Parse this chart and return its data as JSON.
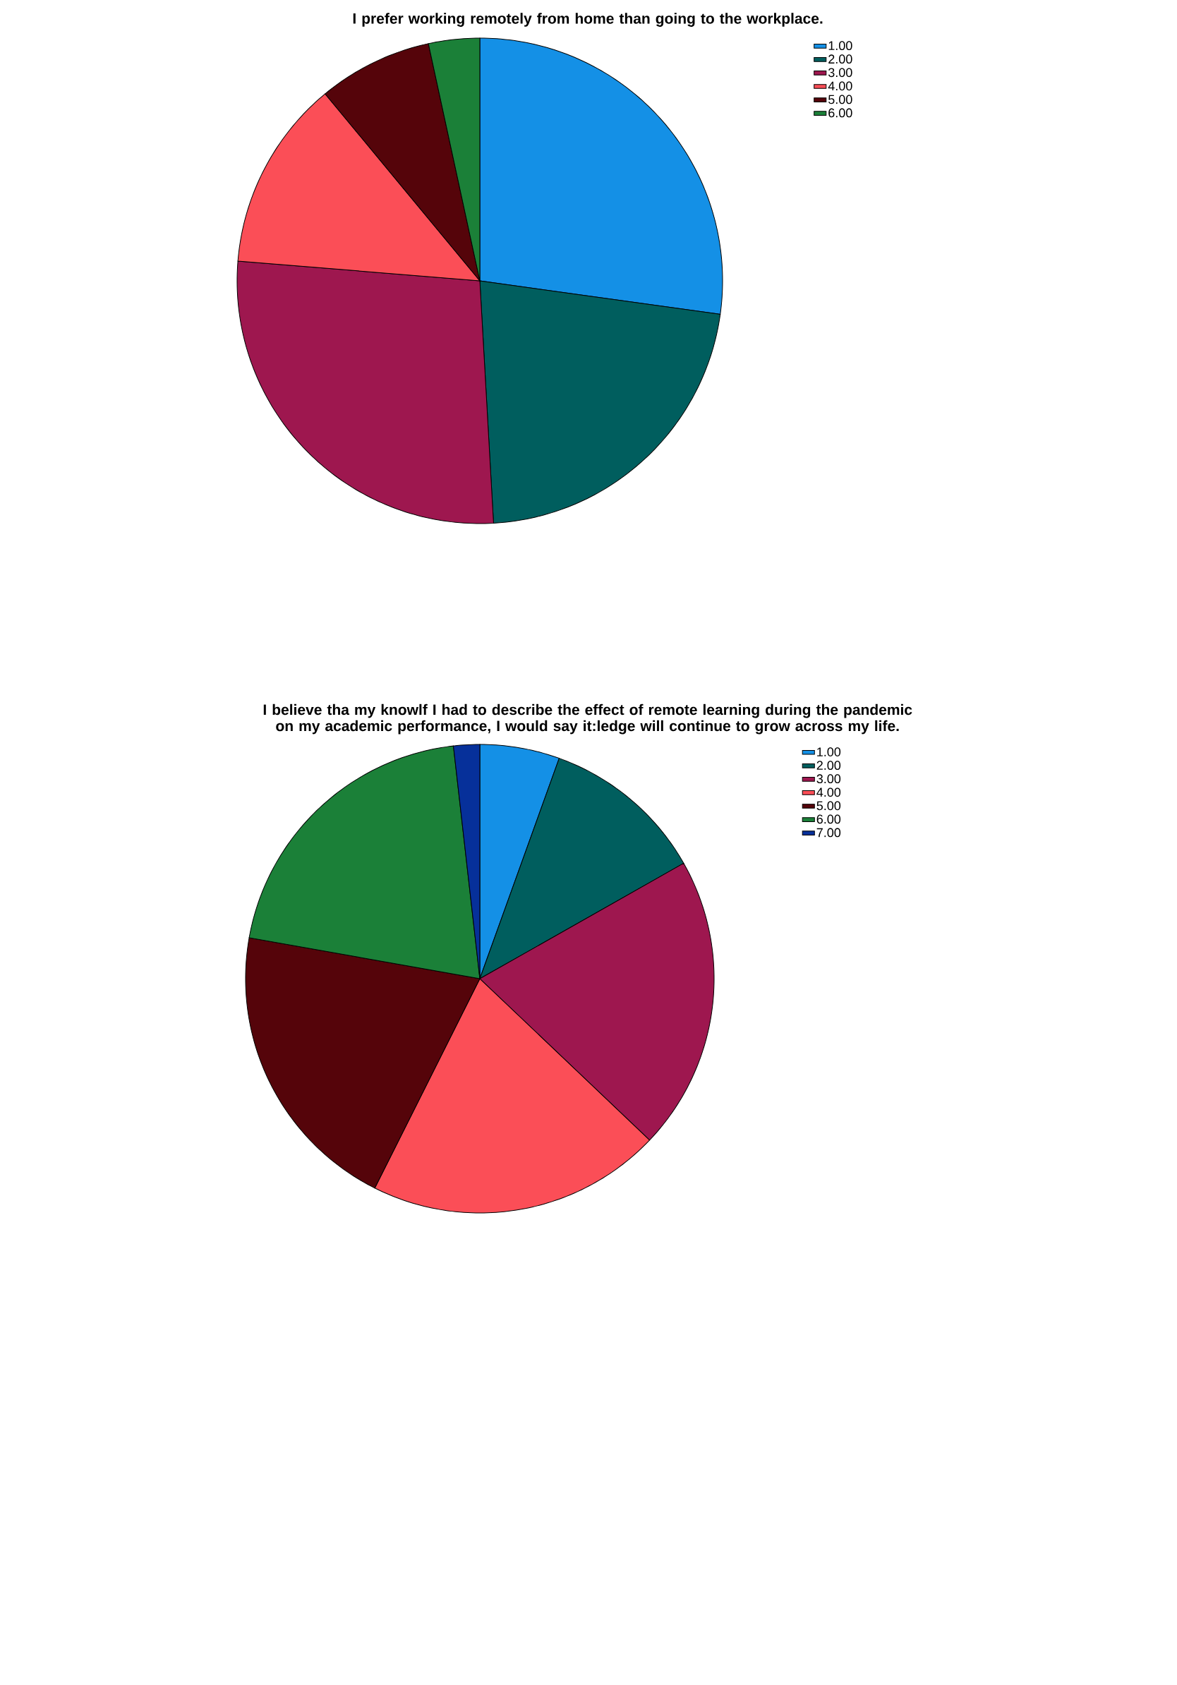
{
  "chart_data": [
    {
      "type": "pie",
      "title": "I prefer working remotely from home than going to the workplace.",
      "categories": [
        "1.00",
        "2.00",
        "3.00",
        "4.00",
        "5.00",
        "6.00"
      ],
      "values": [
        27.2,
        21.9,
        27.2,
        12.7,
        7.6,
        3.4
      ],
      "colors": [
        "#1490e6",
        "#005e5e",
        "#9e174f",
        "#fb4e57",
        "#55040a",
        "#1b8038"
      ],
      "legend": "top right"
    },
    {
      "type": "pie",
      "title": "I believe tha my knowlf I had to describe the effect of remote learning during the pandemic on my academic performance, I would say it:ledge will continue to grow across my life.",
      "categories": [
        "1.00",
        "2.00",
        "3.00",
        "4.00",
        "5.00",
        "6.00",
        "7.00"
      ],
      "values": [
        5.5,
        11.3,
        20.3,
        20.3,
        20.4,
        20.4,
        1.8
      ],
      "colors": [
        "#1490e6",
        "#005e5e",
        "#9e174f",
        "#fb4e57",
        "#55040a",
        "#1b8038",
        "#06309a"
      ],
      "legend": "top right"
    }
  ]
}
